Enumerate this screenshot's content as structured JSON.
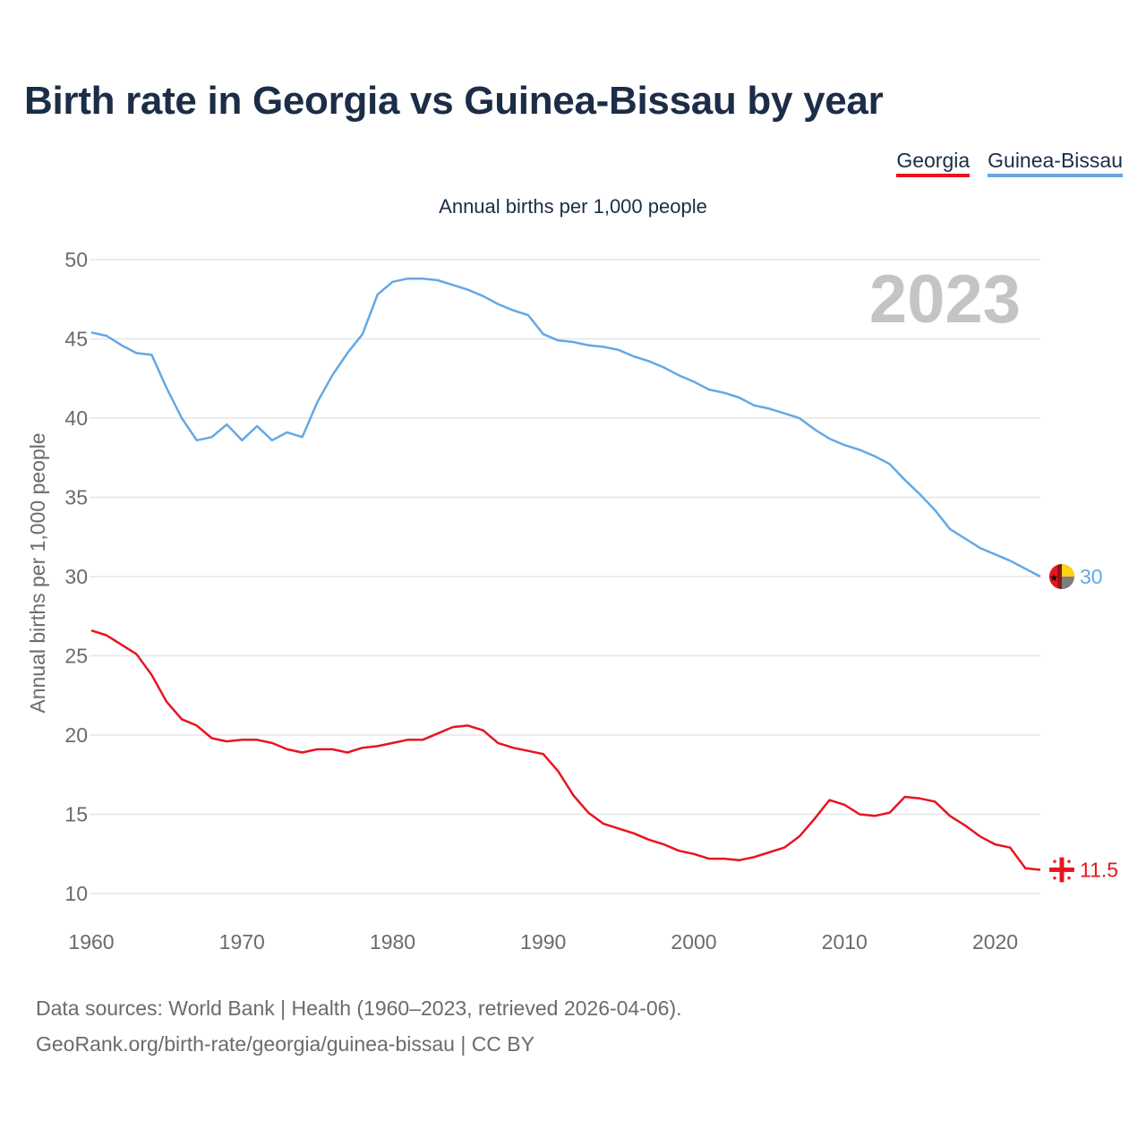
{
  "title": "Birth rate in Georgia vs Guinea-Bissau by year",
  "legend": [
    {
      "name": "Georgia",
      "color": "#e8141e"
    },
    {
      "name": "Guinea-Bissau",
      "color": "#64a8e6"
    }
  ],
  "subtitle": "Annual births per 1,000 people",
  "year_watermark": "2023",
  "footer": {
    "line1": "Data sources: World Bank | Health (1960–2023, retrieved 2026-04-06).",
    "line2": "GeoRank.org/birth-rate/georgia/guinea-bissau | CC BY"
  },
  "end_labels": {
    "guinea_bissau": "30",
    "georgia": "11.5"
  },
  "chart_data": {
    "type": "line",
    "title": "Birth rate in Georgia vs Guinea-Bissau by year",
    "xlabel": "",
    "ylabel": "Annual births per 1,000 people",
    "xlim": [
      1960,
      2023
    ],
    "ylim": [
      10,
      50
    ],
    "x_ticks": [
      "1960",
      "1970",
      "1980",
      "1990",
      "2000",
      "2010",
      "2020"
    ],
    "y_ticks": [
      "10",
      "15",
      "20",
      "25",
      "30",
      "35",
      "40",
      "45",
      "50"
    ],
    "grid": true,
    "legend_position": "top-right",
    "x": [
      1960,
      1961,
      1962,
      1963,
      1964,
      1965,
      1966,
      1967,
      1968,
      1969,
      1970,
      1971,
      1972,
      1973,
      1974,
      1975,
      1976,
      1977,
      1978,
      1979,
      1980,
      1981,
      1982,
      1983,
      1984,
      1985,
      1986,
      1987,
      1988,
      1989,
      1990,
      1991,
      1992,
      1993,
      1994,
      1995,
      1996,
      1997,
      1998,
      1999,
      2000,
      2001,
      2002,
      2003,
      2004,
      2005,
      2006,
      2007,
      2008,
      2009,
      2010,
      2011,
      2012,
      2013,
      2014,
      2015,
      2016,
      2017,
      2018,
      2019,
      2020,
      2021,
      2022,
      2023
    ],
    "series": [
      {
        "name": "Guinea-Bissau",
        "color": "#64a8e6",
        "values": [
          45.4,
          45.2,
          44.6,
          44.1,
          44.0,
          41.9,
          40.0,
          38.6,
          38.8,
          39.6,
          38.6,
          39.5,
          38.6,
          39.1,
          38.8,
          41.0,
          42.7,
          44.1,
          45.3,
          47.8,
          48.6,
          48.8,
          48.8,
          48.7,
          48.4,
          48.1,
          47.7,
          47.2,
          46.8,
          46.5,
          45.3,
          44.9,
          44.8,
          44.6,
          44.5,
          44.3,
          43.9,
          43.6,
          43.2,
          42.7,
          42.3,
          41.8,
          41.6,
          41.3,
          40.8,
          40.6,
          40.3,
          40.0,
          39.3,
          38.7,
          38.3,
          38.0,
          37.6,
          37.1,
          36.1,
          35.2,
          34.2,
          33.0,
          32.4,
          31.8,
          31.4,
          31.0,
          30.5,
          30.0
        ]
      },
      {
        "name": "Georgia",
        "color": "#e8141e",
        "values": [
          26.6,
          26.3,
          25.7,
          25.1,
          23.8,
          22.1,
          21.0,
          20.6,
          19.8,
          19.6,
          19.7,
          19.7,
          19.5,
          19.1,
          18.9,
          19.1,
          19.1,
          18.9,
          19.2,
          19.3,
          19.5,
          19.7,
          19.7,
          20.1,
          20.5,
          20.6,
          20.3,
          19.5,
          19.2,
          19.0,
          18.8,
          17.7,
          16.2,
          15.1,
          14.4,
          14.1,
          13.8,
          13.4,
          13.1,
          12.7,
          12.5,
          12.2,
          12.2,
          12.1,
          12.3,
          12.6,
          12.9,
          13.6,
          14.7,
          15.9,
          15.6,
          15.0,
          14.9,
          15.1,
          16.1,
          16.0,
          15.8,
          14.9,
          14.3,
          13.6,
          13.1,
          12.9,
          11.6,
          11.5
        ]
      }
    ]
  }
}
